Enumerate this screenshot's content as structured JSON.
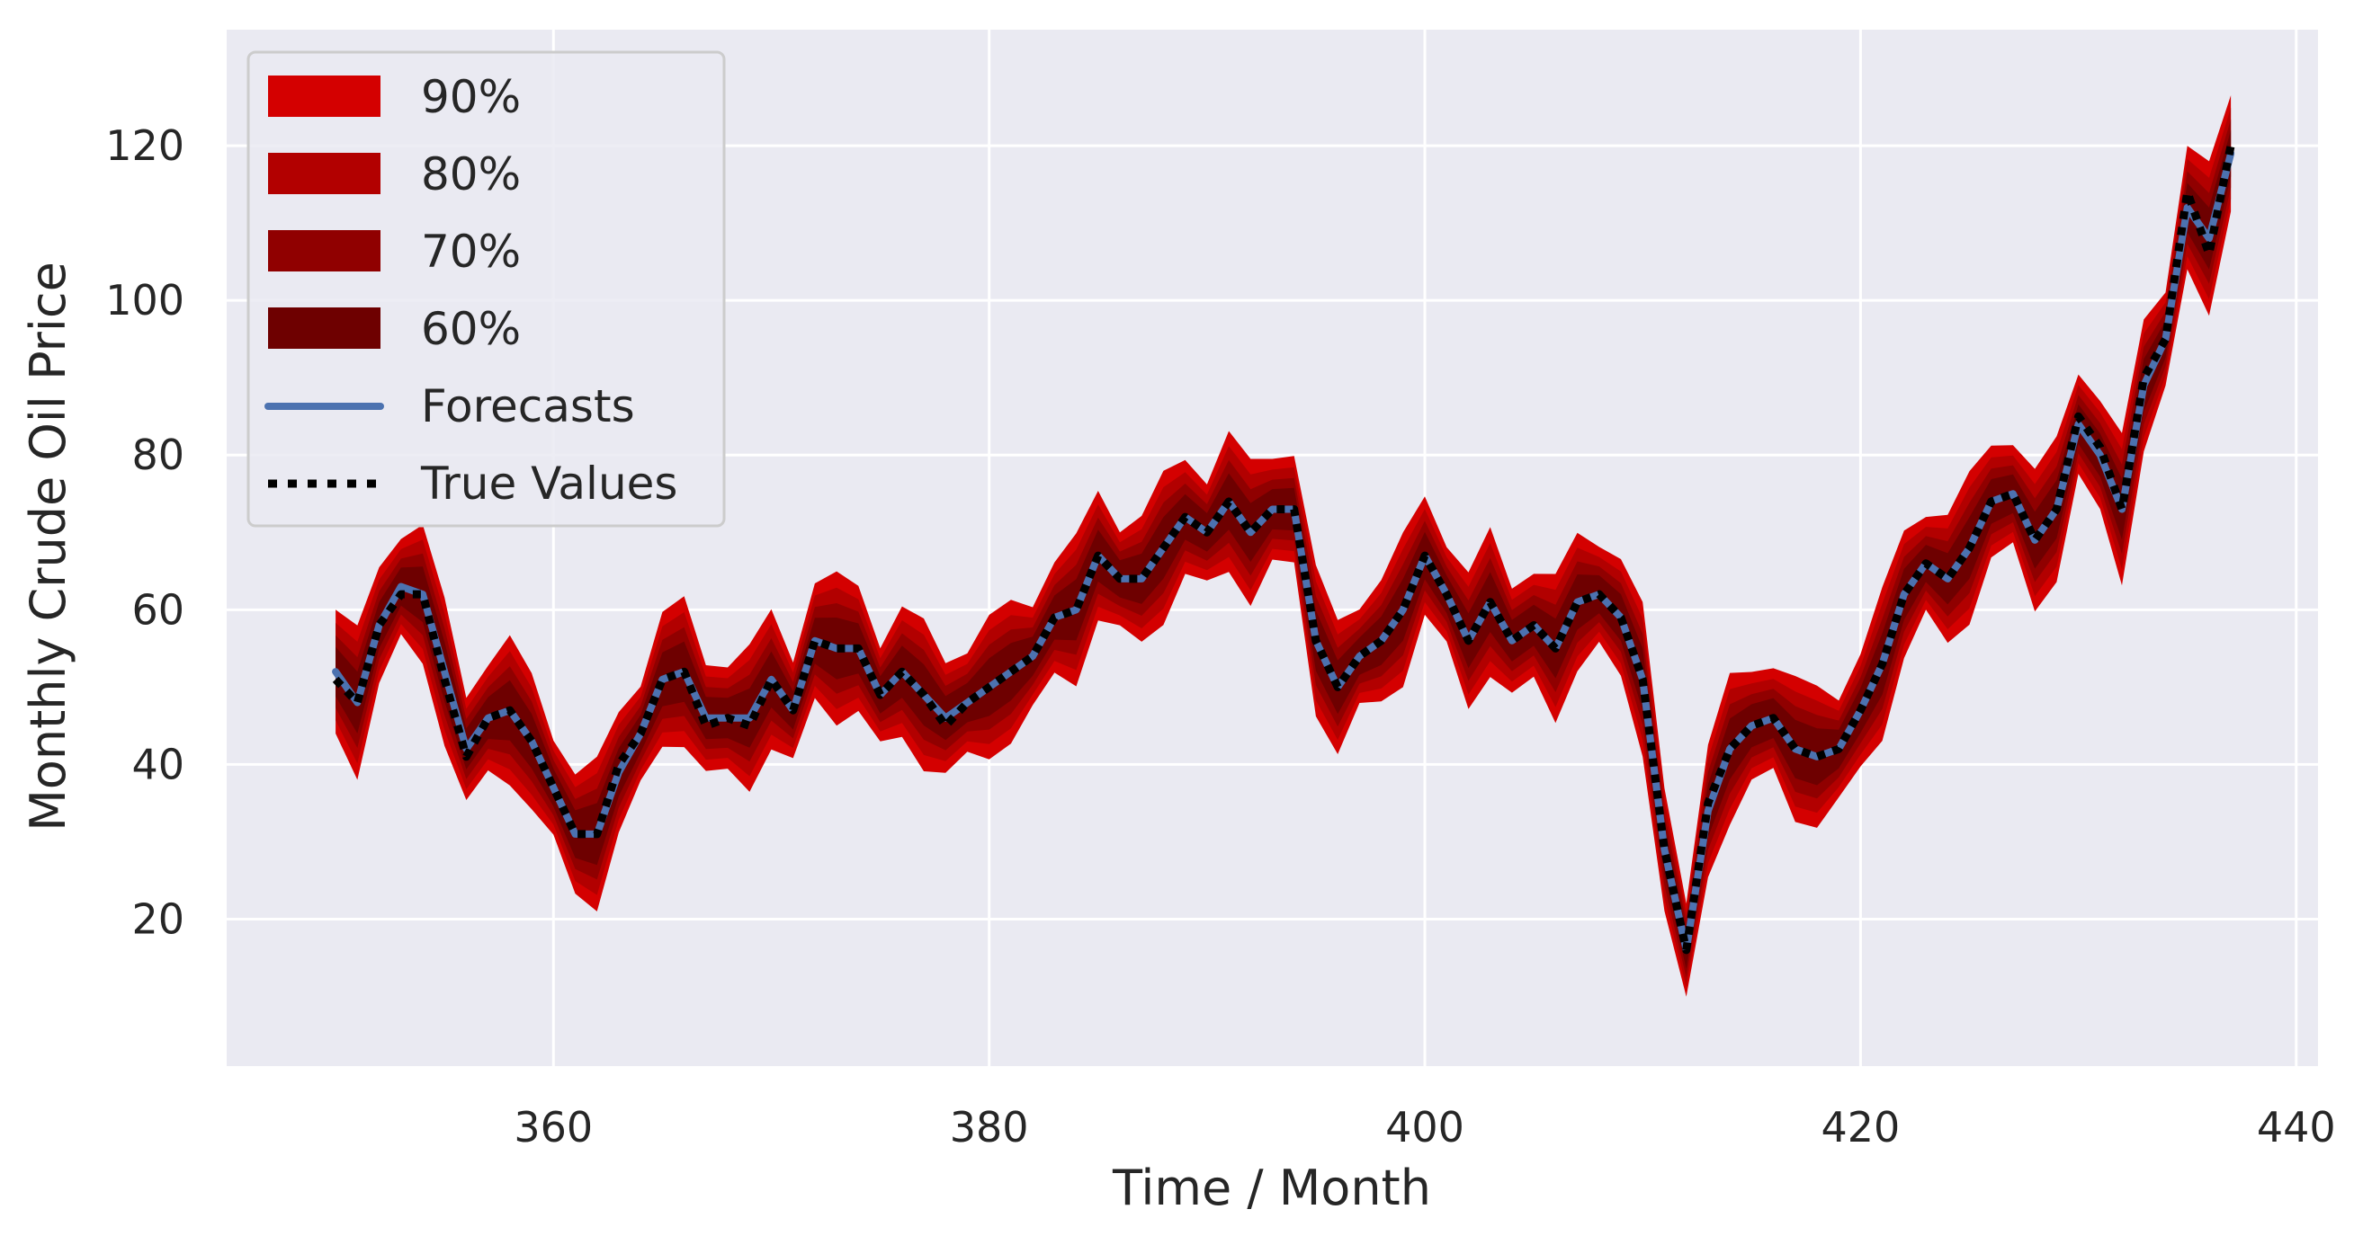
{
  "chart_data": {
    "type": "area",
    "title": "",
    "xlabel": "Time / Month",
    "ylabel": "Monthly Crude Oil Price",
    "xlim": [
      345,
      441
    ],
    "ylim": [
      1,
      135
    ],
    "x_ticks": [
      360,
      380,
      400,
      420,
      440
    ],
    "y_ticks": [
      20,
      40,
      60,
      80,
      100,
      120
    ],
    "grid": true,
    "legend_position": "upper-left",
    "legend": [
      {
        "label": "90%",
        "kind": "band",
        "color": "#d40000"
      },
      {
        "label": "80%",
        "kind": "band",
        "color": "#b20000"
      },
      {
        "label": "70%",
        "kind": "band",
        "color": "#900000"
      },
      {
        "label": "60%",
        "kind": "band",
        "color": "#6e0000"
      },
      {
        "label": "Forecasts",
        "kind": "line",
        "color": "#4c72b0"
      },
      {
        "label": "True Values",
        "kind": "dotted",
        "color": "#000000"
      }
    ],
    "x": [
      350,
      351,
      352,
      353,
      354,
      355,
      356,
      357,
      358,
      359,
      360,
      361,
      362,
      363,
      364,
      365,
      366,
      367,
      368,
      369,
      370,
      371,
      372,
      373,
      374,
      375,
      376,
      377,
      378,
      379,
      380,
      381,
      382,
      383,
      384,
      385,
      386,
      387,
      388,
      389,
      390,
      391,
      392,
      393,
      394,
      395,
      396,
      397,
      398,
      399,
      400,
      401,
      402,
      403,
      404,
      405,
      406,
      407,
      408,
      409,
      410,
      411,
      412,
      413,
      414,
      415,
      416,
      417,
      418,
      419,
      420,
      421,
      422,
      423,
      424,
      425,
      426,
      427,
      428,
      429,
      430,
      431,
      432,
      433,
      434,
      435,
      436,
      437
    ],
    "series": [
      {
        "name": "Forecasts",
        "values": [
          52,
          48,
          58,
          63,
          62,
          52,
          42,
          46,
          47,
          43,
          37,
          31,
          31,
          39,
          44,
          51,
          52,
          46,
          46,
          46,
          51,
          47,
          56,
          55,
          55,
          49,
          52,
          49,
          46,
          48,
          50,
          52,
          54,
          59,
          60,
          67,
          64,
          64,
          68,
          72,
          70,
          74,
          70,
          73,
          73,
          56,
          50,
          54,
          56,
          60,
          67,
          62,
          56,
          61,
          56,
          58,
          55,
          61,
          62,
          59,
          51,
          29,
          16,
          34,
          42,
          45,
          46,
          42,
          41,
          42,
          47,
          53,
          62,
          66,
          64,
          68,
          74,
          75,
          69,
          73,
          84,
          80,
          73,
          89,
          95,
          112,
          108,
          119
        ]
      },
      {
        "name": "True Values",
        "values": [
          51,
          48,
          58,
          62,
          62,
          51,
          41,
          46,
          47,
          43,
          37,
          31,
          31,
          40,
          44,
          51,
          52,
          45,
          46,
          45,
          51,
          47,
          56,
          55,
          55,
          49,
          52,
          49,
          45,
          48,
          50,
          52,
          54,
          59,
          60,
          67,
          64,
          64,
          68,
          72,
          70,
          74,
          70,
          73,
          73,
          56,
          50,
          54,
          56,
          60,
          67,
          62,
          56,
          61,
          56,
          58,
          55,
          61,
          62,
          59,
          51,
          29,
          16,
          35,
          42,
          45,
          46,
          42,
          41,
          42,
          47,
          53,
          62,
          66,
          64,
          68,
          74,
          75,
          69,
          73,
          85,
          81,
          73,
          90,
          95,
          114,
          106,
          120
        ]
      }
    ],
    "interval_half_widths": {
      "90%": 8,
      "80%": 6.3,
      "70%": 4.7,
      "60%": 3.2
    }
  }
}
